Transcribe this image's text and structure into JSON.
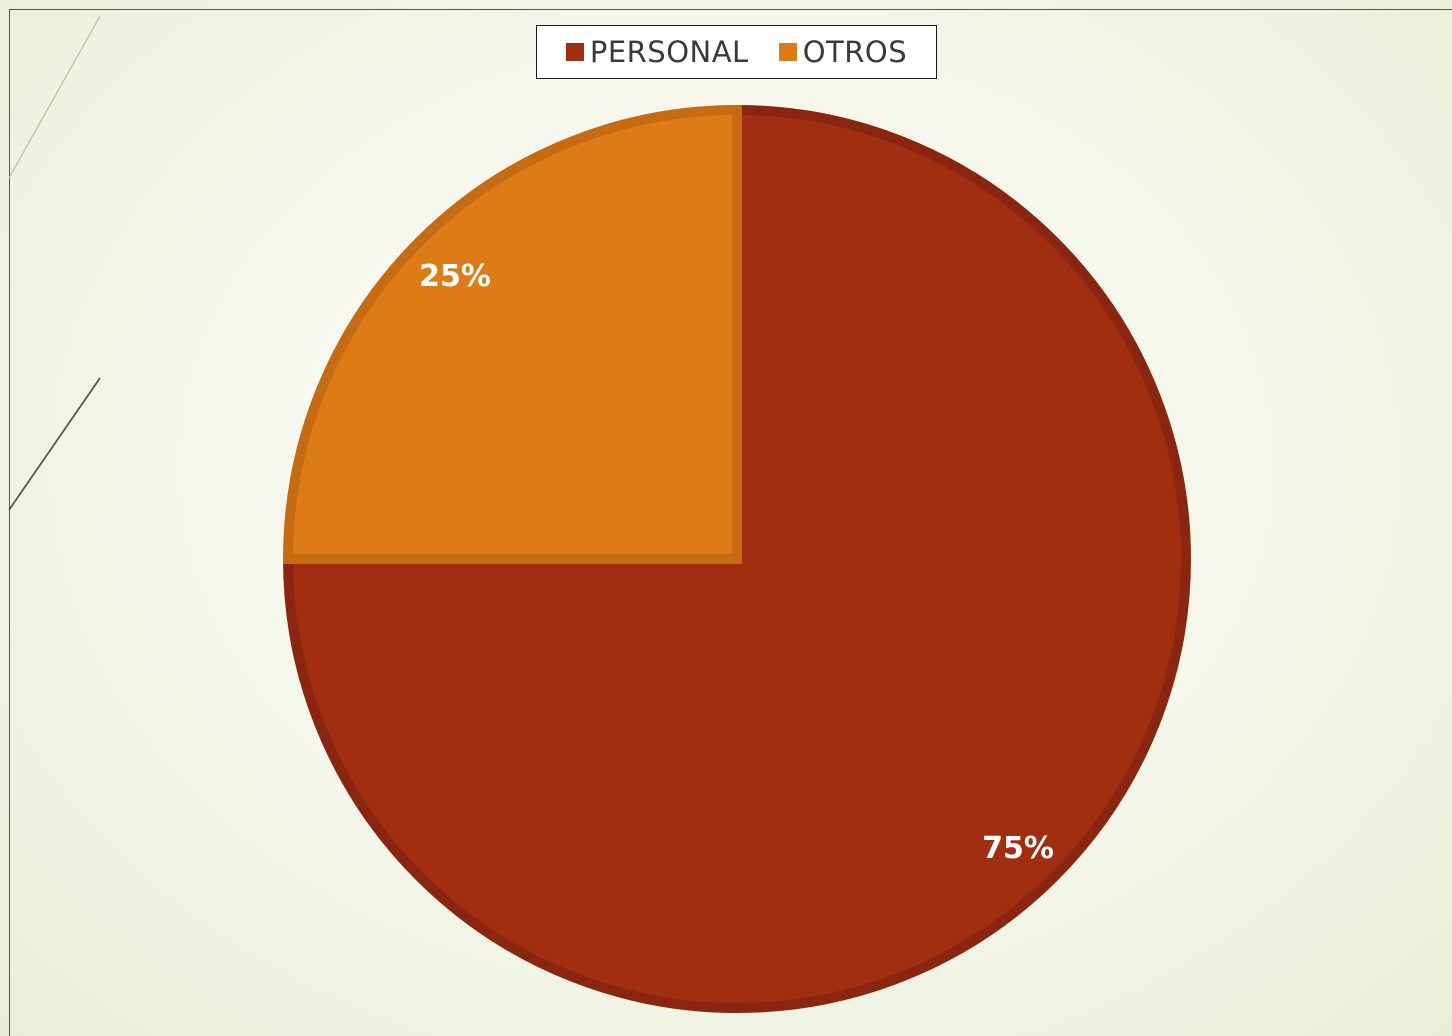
{
  "chart_data": {
    "type": "pie",
    "categories": [
      "PERSONAL",
      "OTROS"
    ],
    "values": [
      75,
      25
    ],
    "data_labels": [
      "75%",
      "25%"
    ],
    "colors": [
      "#a12e10",
      "#dd7c17"
    ],
    "edge_colors": [
      "#8a2610",
      "#c76b12"
    ],
    "start_angle_deg": 0,
    "direction": "clockwise",
    "legend_position": "top",
    "title": ""
  }
}
